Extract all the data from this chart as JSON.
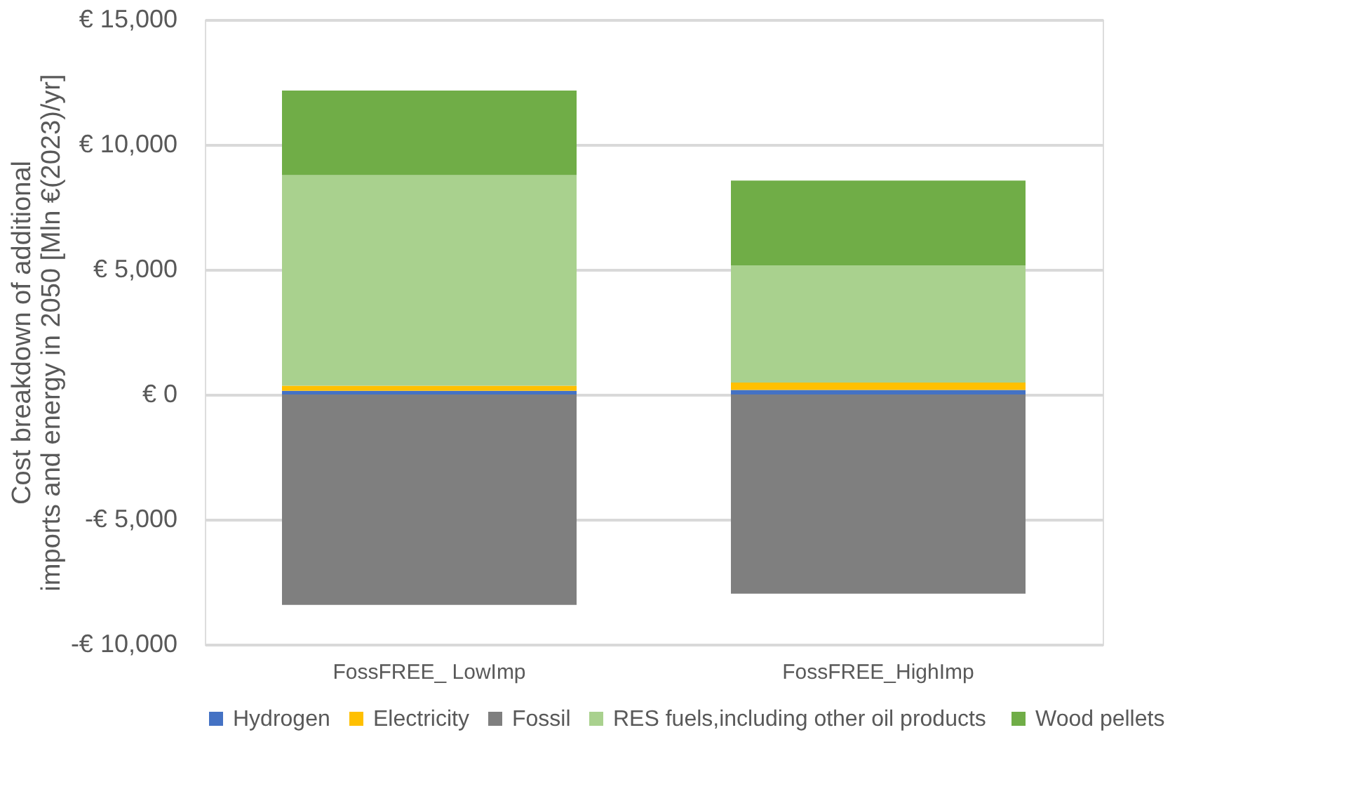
{
  "chart_data": {
    "type": "bar",
    "stacked": true,
    "ylabel": "Cost  breakdown of  additional imports and energy in 2050 [Mln €(2023)/yr]",
    "categories": [
      "FossFREE_ LowImp",
      "FossFREE_HighImp"
    ],
    "series": [
      {
        "name": "Hydrogen",
        "color": "#4472c4",
        "values": [
          150,
          180
        ]
      },
      {
        "name": "Electricity",
        "color": "#ffc000",
        "values": [
          200,
          300
        ]
      },
      {
        "name": "Fossil",
        "color": "#7f7f7f",
        "values": [
          -8420,
          -7970
        ]
      },
      {
        "name": "RES fuels,including other oil  products",
        "color": "#a9d18e",
        "values": [
          8430,
          4690
        ]
      },
      {
        "name": "Wood pellets",
        "color": "#70ad47",
        "values": [
          3380,
          3390
        ]
      }
    ],
    "ylim": [
      -10000,
      15000
    ],
    "yticks": [
      {
        "value": -10000,
        "label": "-€ 10,000"
      },
      {
        "value": -5000,
        "label": "-€ 5,000"
      },
      {
        "value": 0,
        "label": "€ 0"
      },
      {
        "value": 5000,
        "label": "€ 5,000"
      },
      {
        "value": 10000,
        "label": "€ 10,000"
      },
      {
        "value": 15000,
        "label": "€ 15,000"
      }
    ],
    "grid": "y",
    "legend": "bottom"
  }
}
